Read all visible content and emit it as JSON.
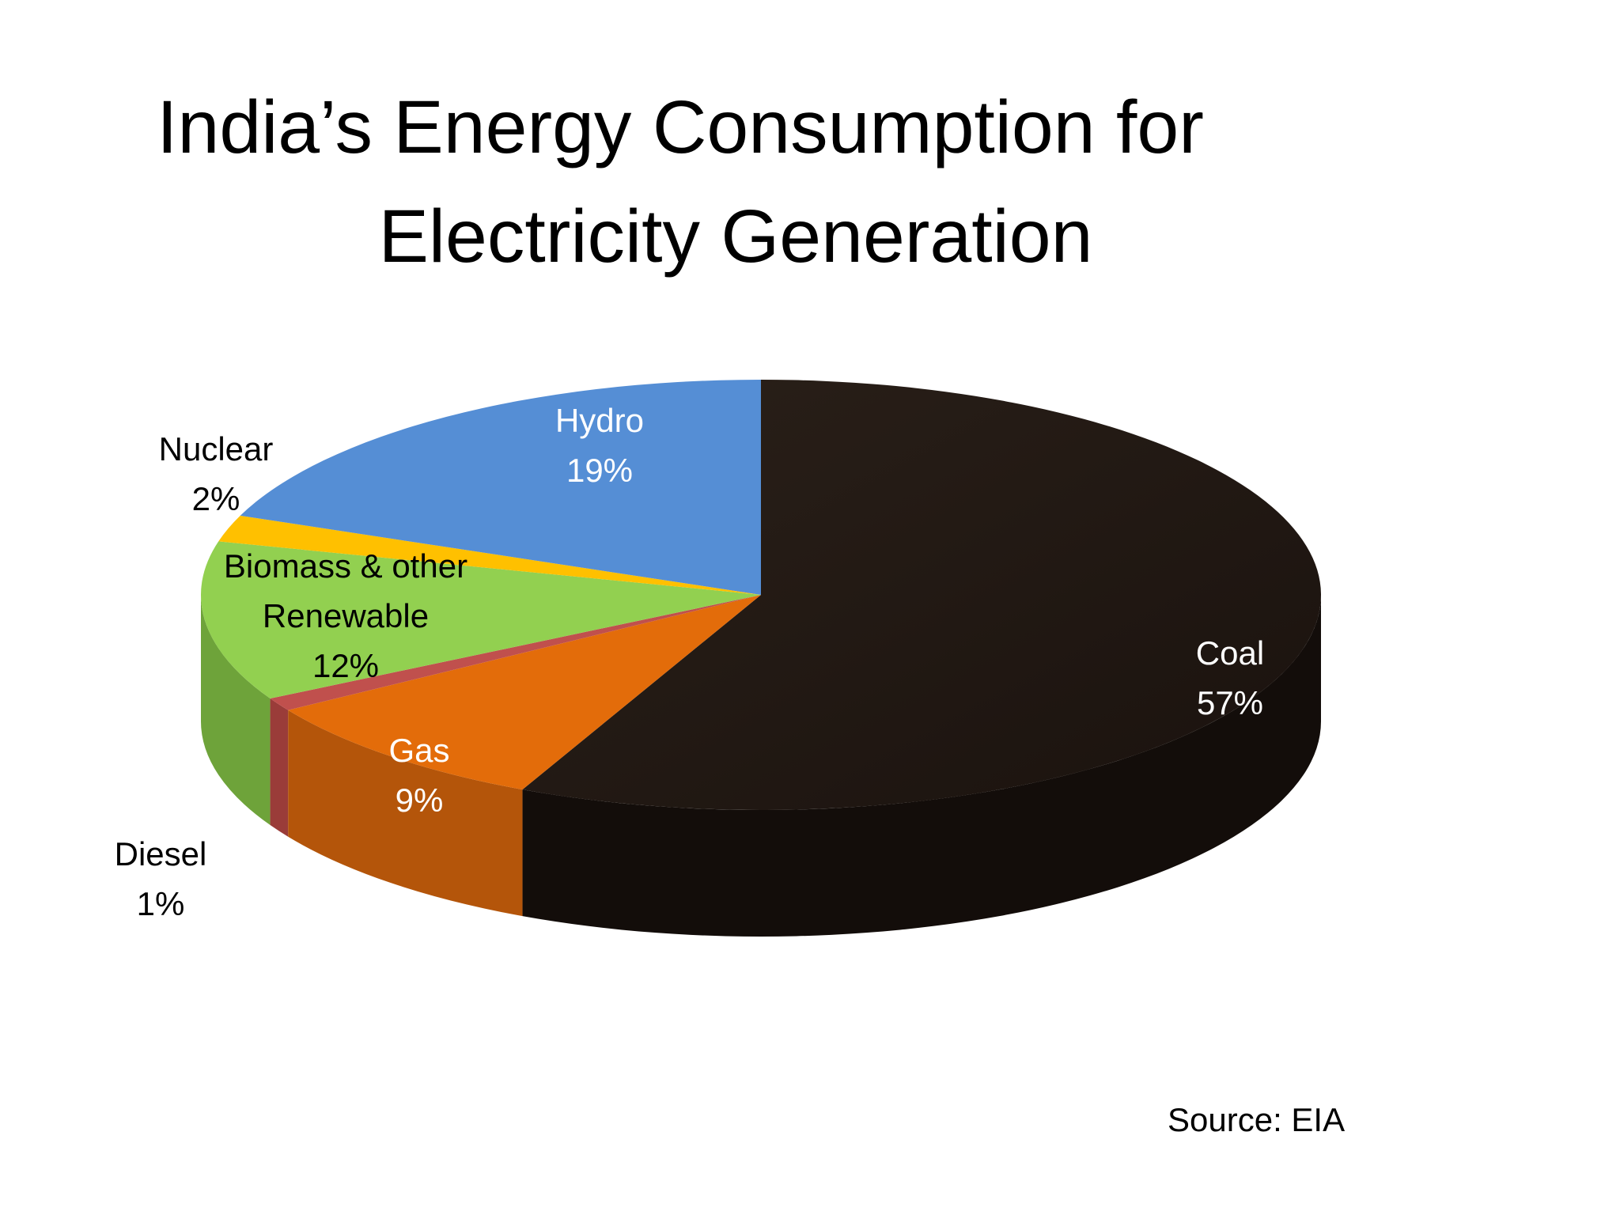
{
  "title": {
    "line1": "India’s Energy Consumption for",
    "line2": "Electricity Generation"
  },
  "source_note": "Source: EIA",
  "chart_data": {
    "type": "pie",
    "title": "India’s Energy Consumption for Electricity Generation",
    "three_d": true,
    "unit": "%",
    "legend": "none",
    "slices": [
      {
        "label": "Coal",
        "value": 57,
        "value_label": "57%",
        "color": "#231a15",
        "side_color": "#130d0a",
        "label_color": "#ffffff"
      },
      {
        "label": "Gas",
        "value": 9,
        "value_label": "9%",
        "color": "#e36c0a",
        "side_color": "#b4550a",
        "label_color": "#ffffff"
      },
      {
        "label": "Diesel",
        "value": 1,
        "value_label": "1%",
        "color": "#c0504d",
        "side_color": "#9a3c39",
        "label_color": "#000000"
      },
      {
        "label": "Biomass & other Renewable",
        "value": 12,
        "value_label": "12%",
        "color": "#92d050",
        "side_color": "#6ea33a",
        "label_color": "#000000"
      },
      {
        "label": "Nuclear",
        "value": 2,
        "value_label": "2%",
        "color": "#ffc000",
        "side_color": "#cc9a00",
        "label_color": "#000000"
      },
      {
        "label": "Hydro",
        "value": 19,
        "value_label": "19%",
        "color": "#558ed5",
        "side_color": "#3f6fab",
        "label_color": "#ffffff"
      }
    ]
  }
}
